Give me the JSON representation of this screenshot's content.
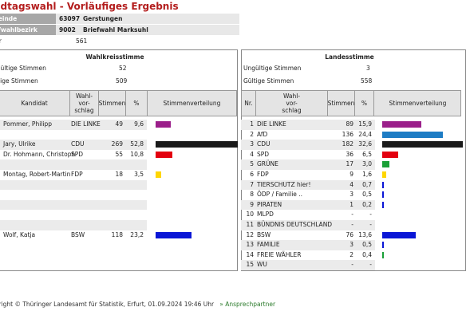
{
  "page_title": "ndtagswahl - Vorläufiges Ergebnis",
  "info": [
    {
      "label": "meinde",
      "number": "63097",
      "text": "Gerstungen"
    },
    {
      "label": "iefwahlbezirk",
      "number": "9002",
      "text": "Briefwahl Marksuhl"
    }
  ],
  "waehler": {
    "label": "ler",
    "value": "561"
  },
  "left_panel": {
    "title": "Wahlkreisstimme",
    "invalid_label": "ngültige Stimmen",
    "invalid_value": "52",
    "valid_label": "iltige Stimmen",
    "valid_value": "509",
    "headers": {
      "kandidat": "Kandidat",
      "wahlvorschlag": "Wahl-\nvor-\nschlag",
      "stimmen": "Stimmen",
      "pct": "%",
      "verteilung": "Stimmenverteilung"
    },
    "rows": [
      {
        "name": "Pommer, Philipp",
        "party": "DIE LINKE",
        "votes": "49",
        "pct": "9,6",
        "share": 9.6,
        "color": "#9b1f8a"
      },
      {
        "name": "",
        "party": "",
        "votes": "",
        "pct": "",
        "share": 0,
        "color": ""
      },
      {
        "name": "Jary, Ulrike",
        "party": "CDU",
        "votes": "269",
        "pct": "52,8",
        "share": 52.8,
        "color": "#1a1a1a"
      },
      {
        "name": "Dr. Hohmann, Christoph",
        "party": "SPD",
        "votes": "55",
        "pct": "10,8",
        "share": 10.8,
        "color": "#e3000f"
      },
      {
        "name": "",
        "party": "",
        "votes": "",
        "pct": "",
        "share": 0,
        "color": ""
      },
      {
        "name": "Montag, Robert-Martin",
        "party": "FDP",
        "votes": "18",
        "pct": "3,5",
        "share": 3.5,
        "color": "#ffd600"
      },
      {
        "name": "",
        "party": "",
        "votes": "",
        "pct": "",
        "share": 0,
        "color": ""
      },
      {
        "name": "",
        "party": "",
        "votes": "",
        "pct": "",
        "share": 0,
        "color": ""
      },
      {
        "name": "",
        "party": "",
        "votes": "",
        "pct": "",
        "share": 0,
        "color": ""
      },
      {
        "name": "",
        "party": "",
        "votes": "",
        "pct": "",
        "share": 0,
        "color": ""
      },
      {
        "name": "",
        "party": "",
        "votes": "",
        "pct": "",
        "share": 0,
        "color": ""
      },
      {
        "name": "Wolf, Katja",
        "party": "BSW",
        "votes": "118",
        "pct": "23,2",
        "share": 23.2,
        "color": "#0a16d6"
      }
    ]
  },
  "right_panel": {
    "title": "Landesstimme",
    "invalid_label": "Ungültige Stimmen",
    "invalid_value": "3",
    "valid_label": "Gültige Stimmen",
    "valid_value": "558",
    "headers": {
      "nr": "Nr.",
      "wahlvorschlag": "Wahl-\nvor-\nschlag",
      "stimmen": "Stimmen",
      "pct": "%",
      "verteilung": "Stimmenverteilung"
    },
    "rows": [
      {
        "nr": "1",
        "party": "DIE LINKE",
        "votes": "89",
        "pct": "15,9",
        "share": 15.9,
        "color": "#9b1f8a"
      },
      {
        "nr": "2",
        "party": "AfD",
        "votes": "136",
        "pct": "24,4",
        "share": 24.4,
        "color": "#1d7cc4"
      },
      {
        "nr": "3",
        "party": "CDU",
        "votes": "182",
        "pct": "32,6",
        "share": 32.6,
        "color": "#1a1a1a"
      },
      {
        "nr": "4",
        "party": "SPD",
        "votes": "36",
        "pct": "6,5",
        "share": 6.5,
        "color": "#e3000f"
      },
      {
        "nr": "5",
        "party": "GRÜNE",
        "votes": "17",
        "pct": "3,0",
        "share": 3.0,
        "color": "#1aa037"
      },
      {
        "nr": "6",
        "party": "FDP",
        "votes": "9",
        "pct": "1,6",
        "share": 1.6,
        "color": "#ffd600"
      },
      {
        "nr": "7",
        "party": "TIERSCHUTZ hier!",
        "votes": "4",
        "pct": "0,7",
        "share": 0.7,
        "color": "#0a16d6"
      },
      {
        "nr": "8",
        "party": "ÖDP / Familie ..",
        "votes": "3",
        "pct": "0,5",
        "share": 0.5,
        "color": "#0a16d6"
      },
      {
        "nr": "9",
        "party": "PIRATEN",
        "votes": "1",
        "pct": "0,2",
        "share": 0.2,
        "color": "#0a16d6"
      },
      {
        "nr": "10",
        "party": "MLPD",
        "votes": "-",
        "pct": "-",
        "share": 0,
        "color": ""
      },
      {
        "nr": "11",
        "party": "BÜNDNIS DEUTSCHLAND",
        "votes": "-",
        "pct": "-",
        "share": 0,
        "color": ""
      },
      {
        "nr": "12",
        "party": "BSW",
        "votes": "76",
        "pct": "13,6",
        "share": 13.6,
        "color": "#0a16d6"
      },
      {
        "nr": "13",
        "party": "FAMILIE",
        "votes": "3",
        "pct": "0,5",
        "share": 0.5,
        "color": "#0a16d6"
      },
      {
        "nr": "14",
        "party": "FREIE WÄHLER",
        "votes": "2",
        "pct": "0,4",
        "share": 0.4,
        "color": "#1aa037"
      },
      {
        "nr": "15",
        "party": "WU",
        "votes": "-",
        "pct": "-",
        "share": 0,
        "color": ""
      }
    ]
  },
  "footer": {
    "text": "yright © Thüringer Landesamt für Statistik, Erfurt, 01.09.2024 19:46 Uhr",
    "link": "» Ansprechpartner"
  }
}
